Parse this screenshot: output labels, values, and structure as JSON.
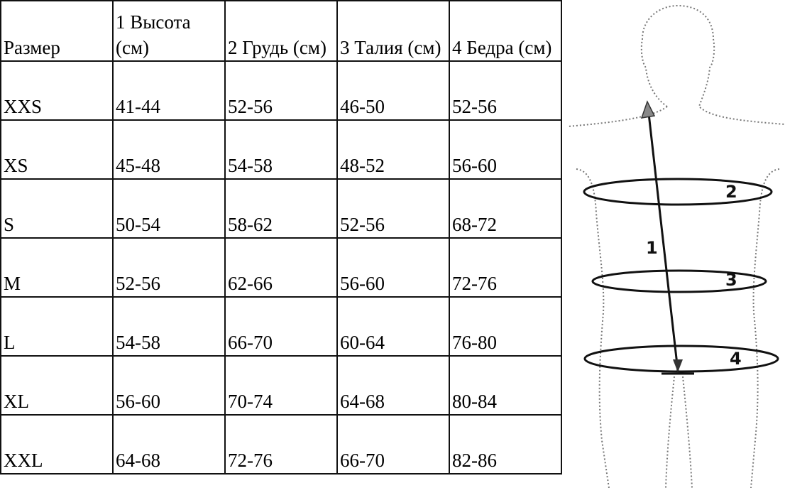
{
  "table": {
    "header": [
      "Размер",
      "1 Высота (см)",
      "2 Грудь (см)",
      "3 Талия (см)",
      "4 Бедра (см)"
    ],
    "rows": [
      [
        "XXS",
        "41-44",
        "52-56",
        "46-50",
        "52-56"
      ],
      [
        "XS",
        "45-48",
        "54-58",
        "48-52",
        "56-60"
      ],
      [
        "S",
        "50-54",
        "58-62",
        "52-56",
        "68-72"
      ],
      [
        "M",
        "52-56",
        "62-66",
        "56-60",
        "72-76"
      ],
      [
        "L",
        "54-58",
        "66-70",
        "60-64",
        "76-80"
      ],
      [
        "XL",
        "56-60",
        "70-74",
        "64-68",
        "80-84"
      ],
      [
        "XXL",
        "64-68",
        "72-76",
        "66-70",
        "82-86"
      ]
    ]
  },
  "figure": {
    "labels": [
      "1",
      "2",
      "3",
      "4"
    ]
  }
}
